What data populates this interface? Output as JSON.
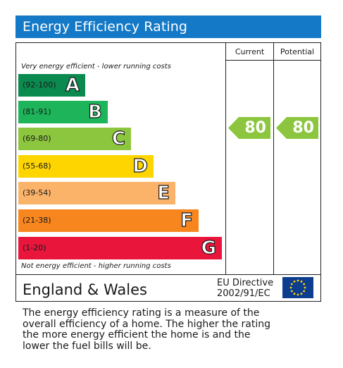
{
  "header": {
    "title": "Energy Efficiency Rating",
    "color": "#1479c6"
  },
  "columns": {
    "current": "Current",
    "potential": "Potential"
  },
  "notes": {
    "top": "Very energy efficient - lower running costs",
    "bottom": "Not energy efficient - higher running costs"
  },
  "bands": [
    {
      "range": "(92-100)",
      "letter": "A",
      "color": "#0b8a4f"
    },
    {
      "range": "(81-91)",
      "letter": "B",
      "color": "#1db45a"
    },
    {
      "range": "(69-80)",
      "letter": "C",
      "color": "#8cc63f"
    },
    {
      "range": "(55-68)",
      "letter": "D",
      "color": "#ffd500"
    },
    {
      "range": "(39-54)",
      "letter": "E",
      "color": "#fbb36a"
    },
    {
      "range": "(21-38)",
      "letter": "F",
      "color": "#f7861f"
    },
    {
      "range": "(1-20)",
      "letter": "G",
      "color": "#e9153b"
    }
  ],
  "ratings": {
    "current": "80",
    "potential": "80",
    "arrow_color": "#8cc63f"
  },
  "footer": {
    "region": "England & Wales",
    "directive_line1": "EU Directive",
    "directive_line2": "2002/91/EC"
  },
  "description": [
    "The energy efficiency rating is a measure of the",
    "overall efficiency of a home. The higher the rating",
    "the more energy efficient the home is and the",
    "lower the fuel bills will be."
  ]
}
